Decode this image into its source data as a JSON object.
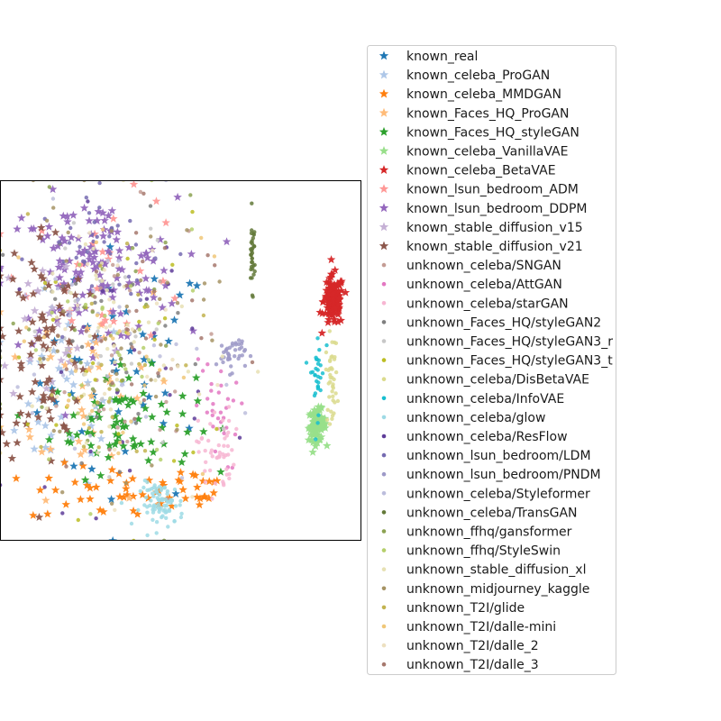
{
  "chart_data": {
    "type": "scatter",
    "title": "",
    "xlabel": "",
    "ylabel": "",
    "xticks": [],
    "yticks": [],
    "grid": false,
    "legend_placement": "right",
    "series": [
      {
        "name": "known_real",
        "color": "#1f77b4",
        "marker": "star",
        "clusters": [
          {
            "x": 0.35,
            "y": 0.45,
            "sx": 0.12,
            "sy": 0.18,
            "n": 45
          }
        ]
      },
      {
        "name": "known_celeba_ProGAN",
        "color": "#aec7e8",
        "marker": "star",
        "clusters": [
          {
            "x": 0.18,
            "y": 0.4,
            "sx": 0.09,
            "sy": 0.12,
            "n": 40
          }
        ]
      },
      {
        "name": "known_celeba_MMDGAN",
        "color": "#ff7f0e",
        "marker": "star",
        "clusters": [
          {
            "x": 0.32,
            "y": 0.13,
            "sx": 0.12,
            "sy": 0.04,
            "n": 45
          },
          {
            "x": 0.55,
            "y": 0.15,
            "sx": 0.04,
            "sy": 0.03,
            "n": 15
          }
        ]
      },
      {
        "name": "known_Faces_HQ_ProGAN",
        "color": "#ffbb78",
        "marker": "star",
        "clusters": [
          {
            "x": 0.25,
            "y": 0.45,
            "sx": 0.12,
            "sy": 0.16,
            "n": 40
          }
        ]
      },
      {
        "name": "known_Faces_HQ_styleGAN",
        "color": "#2ca02c",
        "marker": "star",
        "clusters": [
          {
            "x": 0.34,
            "y": 0.33,
            "sx": 0.1,
            "sy": 0.07,
            "n": 70
          }
        ]
      },
      {
        "name": "known_celeba_VanillaVAE",
        "color": "#98df8a",
        "marker": "star",
        "clusters": [
          {
            "x": 0.88,
            "y": 0.32,
            "sx": 0.012,
            "sy": 0.022,
            "n": 90
          }
        ]
      },
      {
        "name": "known_celeba_BetaVAE",
        "color": "#d62728",
        "marker": "star",
        "clusters": [
          {
            "x": 0.925,
            "y": 0.665,
            "sx": 0.014,
            "sy": 0.035,
            "n": 120
          }
        ]
      },
      {
        "name": "known_lsun_bedroom_ADM",
        "color": "#ff9896",
        "marker": "star",
        "clusters": [
          {
            "x": 0.3,
            "y": 0.75,
            "sx": 0.12,
            "sy": 0.1,
            "n": 30
          }
        ]
      },
      {
        "name": "known_lsun_bedroom_DDPM",
        "color": "#9467bd",
        "marker": "star",
        "clusters": [
          {
            "x": 0.25,
            "y": 0.75,
            "sx": 0.12,
            "sy": 0.1,
            "n": 130
          }
        ]
      },
      {
        "name": "known_stable_diffusion_v15",
        "color": "#c5b0d5",
        "marker": "star",
        "clusters": [
          {
            "x": 0.15,
            "y": 0.6,
            "sx": 0.08,
            "sy": 0.12,
            "n": 30
          }
        ]
      },
      {
        "name": "known_stable_diffusion_v21",
        "color": "#8c564b",
        "marker": "star",
        "clusters": [
          {
            "x": 0.12,
            "y": 0.55,
            "sx": 0.06,
            "sy": 0.17,
            "n": 80
          }
        ]
      },
      {
        "name": "unknown_celeba/SNGAN",
        "color": "#c49c94",
        "marker": "dot",
        "clusters": [
          {
            "x": 0.3,
            "y": 0.5,
            "sx": 0.14,
            "sy": 0.2,
            "n": 30
          }
        ]
      },
      {
        "name": "unknown_celeba/AttGAN",
        "color": "#e377c2",
        "marker": "dot",
        "clusters": [
          {
            "x": 0.6,
            "y": 0.35,
            "sx": 0.03,
            "sy": 0.08,
            "n": 30
          }
        ]
      },
      {
        "name": "unknown_celeba/starGAN",
        "color": "#f7b6d2",
        "marker": "dot",
        "clusters": [
          {
            "x": 0.6,
            "y": 0.25,
            "sx": 0.025,
            "sy": 0.06,
            "n": 50
          }
        ]
      },
      {
        "name": "unknown_Faces_HQ/styleGAN2",
        "color": "#7f7f7f",
        "marker": "dot",
        "clusters": [
          {
            "x": 0.3,
            "y": 0.5,
            "sx": 0.14,
            "sy": 0.2,
            "n": 30
          }
        ]
      },
      {
        "name": "unknown_Faces_HQ/styleGAN3_r",
        "color": "#c7c7c7",
        "marker": "dot",
        "clusters": [
          {
            "x": 0.3,
            "y": 0.5,
            "sx": 0.14,
            "sy": 0.2,
            "n": 30
          }
        ]
      },
      {
        "name": "unknown_Faces_HQ/styleGAN3_t",
        "color": "#bcbd22",
        "marker": "dot",
        "clusters": [
          {
            "x": 0.3,
            "y": 0.5,
            "sx": 0.14,
            "sy": 0.2,
            "n": 30
          }
        ]
      },
      {
        "name": "unknown_celeba/DisBetaVAE",
        "color": "#dbdb8d",
        "marker": "dot",
        "clusters": [
          {
            "x": 0.92,
            "y": 0.45,
            "sx": 0.008,
            "sy": 0.06,
            "n": 40
          }
        ]
      },
      {
        "name": "unknown_celeba/InfoVAE",
        "color": "#17becf",
        "marker": "dot",
        "clusters": [
          {
            "x": 0.88,
            "y": 0.47,
            "sx": 0.01,
            "sy": 0.06,
            "n": 30
          }
        ]
      },
      {
        "name": "unknown_celeba/glow",
        "color": "#9edae5",
        "marker": "dot",
        "clusters": [
          {
            "x": 0.45,
            "y": 0.1,
            "sx": 0.03,
            "sy": 0.03,
            "n": 80
          }
        ]
      },
      {
        "name": "unknown_celeba/ResFlow",
        "color": "#5e3c99",
        "marker": "dot",
        "clusters": [
          {
            "x": 0.3,
            "y": 0.5,
            "sx": 0.14,
            "sy": 0.2,
            "n": 30
          }
        ]
      },
      {
        "name": "unknown_lsun_bedroom/LDM",
        "color": "#756bb1",
        "marker": "dot",
        "clusters": [
          {
            "x": 0.3,
            "y": 0.8,
            "sx": 0.1,
            "sy": 0.08,
            "n": 40
          }
        ]
      },
      {
        "name": "unknown_lsun_bedroom/PNDM",
        "color": "#9e9ac8",
        "marker": "dot",
        "clusters": [
          {
            "x": 0.64,
            "y": 0.52,
            "sx": 0.02,
            "sy": 0.025,
            "n": 40
          }
        ]
      },
      {
        "name": "unknown_celeba/Styleformer",
        "color": "#bcbddc",
        "marker": "dot",
        "clusters": [
          {
            "x": 0.3,
            "y": 0.5,
            "sx": 0.14,
            "sy": 0.2,
            "n": 30
          }
        ]
      },
      {
        "name": "unknown_celeba/TransGAN",
        "color": "#637939",
        "marker": "dot",
        "clusters": [
          {
            "x": 0.7,
            "y": 0.8,
            "sx": 0.004,
            "sy": 0.05,
            "n": 35
          }
        ]
      },
      {
        "name": "unknown_ffhq/gansformer",
        "color": "#8ca252",
        "marker": "dot",
        "clusters": [
          {
            "x": 0.3,
            "y": 0.5,
            "sx": 0.14,
            "sy": 0.2,
            "n": 30
          }
        ]
      },
      {
        "name": "unknown_ffhq/StyleSwin",
        "color": "#b5cf6b",
        "marker": "dot",
        "clusters": [
          {
            "x": 0.3,
            "y": 0.5,
            "sx": 0.14,
            "sy": 0.2,
            "n": 30
          }
        ]
      },
      {
        "name": "unknown_stable_diffusion_xl",
        "color": "#e7e1b4",
        "marker": "dot",
        "clusters": [
          {
            "x": 0.3,
            "y": 0.55,
            "sx": 0.14,
            "sy": 0.2,
            "n": 40
          }
        ]
      },
      {
        "name": "unknown_midjourney_kaggle",
        "color": "#a69364",
        "marker": "dot",
        "clusters": [
          {
            "x": 0.3,
            "y": 0.55,
            "sx": 0.14,
            "sy": 0.2,
            "n": 40
          }
        ]
      },
      {
        "name": "unknown_T2I/glide",
        "color": "#c2b34f",
        "marker": "dot",
        "clusters": [
          {
            "x": 0.3,
            "y": 0.55,
            "sx": 0.14,
            "sy": 0.2,
            "n": 30
          }
        ]
      },
      {
        "name": "unknown_T2I/dalle-mini",
        "color": "#f0c778",
        "marker": "dot",
        "clusters": [
          {
            "x": 0.3,
            "y": 0.55,
            "sx": 0.14,
            "sy": 0.2,
            "n": 30
          }
        ]
      },
      {
        "name": "unknown_T2I/dalle_2",
        "color": "#ede0c0",
        "marker": "dot",
        "clusters": [
          {
            "x": 0.3,
            "y": 0.55,
            "sx": 0.14,
            "sy": 0.2,
            "n": 30
          }
        ]
      },
      {
        "name": "unknown_T2I/dalle_3",
        "color": "#a6786d",
        "marker": "dot",
        "clusters": [
          {
            "x": 0.3,
            "y": 0.55,
            "sx": 0.14,
            "sy": 0.2,
            "n": 30
          }
        ]
      }
    ]
  }
}
